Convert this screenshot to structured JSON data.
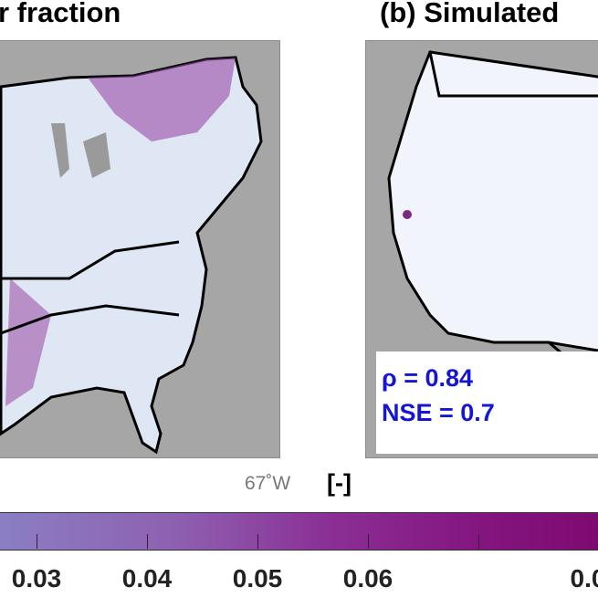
{
  "panels": [
    {
      "title": "r fraction"
    },
    {
      "title": "(b) Simulated"
    }
  ],
  "stats": {
    "rho": "ρ = 0.84",
    "nse": "NSE = 0.7"
  },
  "map_label": {
    "longitude": "67˚W"
  },
  "colorbar": {
    "unit": "[-]",
    "colormap": [
      "#8b7fc4",
      "#8a2f95",
      "#7e0a70"
    ],
    "ticks": [
      "0.03",
      "0.04",
      "0.05",
      "0.06",
      "0.0"
    ]
  }
}
